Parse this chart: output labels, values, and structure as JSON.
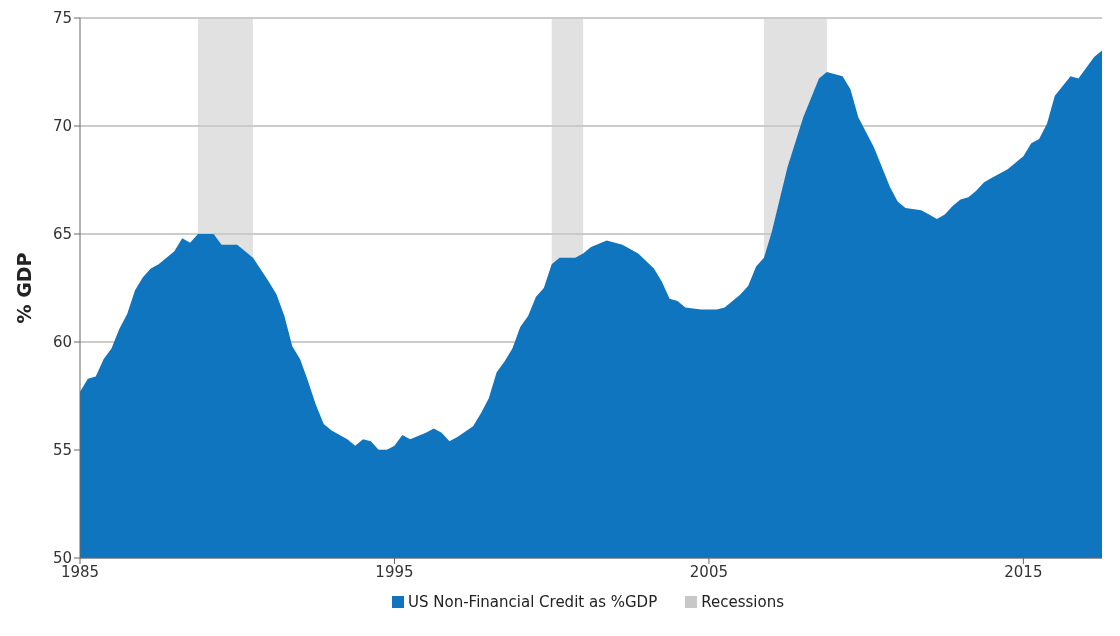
{
  "chart_data": {
    "type": "area",
    "ylabel": "% GDP",
    "xlim": [
      1985,
      2017.5
    ],
    "xticks": [
      1985,
      1995,
      2005,
      2015
    ],
    "ylim": [
      50,
      75
    ],
    "yticks": [
      50,
      55,
      60,
      65,
      70,
      75
    ],
    "grid": "y",
    "legend": "bottom",
    "series": [
      {
        "name": "US Non-Financial Credit as %GDP",
        "color": "#0f75bf",
        "x": [
          1985,
          1985.25,
          1985.5,
          1985.75,
          1986,
          1986.25,
          1986.5,
          1986.75,
          1987,
          1987.25,
          1987.5,
          1987.75,
          1988,
          1988.25,
          1988.5,
          1988.75,
          1989.25,
          1989.5,
          1990,
          1990.5,
          1991,
          1991.25,
          1991.5,
          1991.75,
          1992,
          1992.25,
          1992.5,
          1992.75,
          1993,
          1993.5,
          1993.75,
          1994,
          1994.25,
          1994.5,
          1994.75,
          1995,
          1995.25,
          1995.5,
          1996,
          1996.25,
          1996.5,
          1996.75,
          1997,
          1997.5,
          1997.75,
          1998,
          1998.25,
          1998.5,
          1998.75,
          1999,
          1999.25,
          1999.5,
          1999.75,
          2000,
          2000.25,
          2000.5,
          2000.75,
          2001,
          2001.25,
          2001.75,
          2002.25,
          2002.75,
          2003.25,
          2003.5,
          2003.75,
          2004,
          2004.25,
          2004.75,
          2005.25,
          2005.5,
          2006,
          2006.25,
          2006.5,
          2006.75,
          2007,
          2007.5,
          2008,
          2008.5,
          2008.75,
          2009.25,
          2009.5,
          2009.75,
          2010.25,
          2010.5,
          2010.75,
          2011,
          2011.25,
          2011.75,
          2012,
          2012.25,
          2012.5,
          2012.75,
          2013,
          2013.25,
          2013.5,
          2013.75,
          2014,
          2014.25,
          2014.5,
          2014.75,
          2015,
          2015.25,
          2015.5,
          2015.75,
          2016,
          2016.5,
          2016.75,
          2017,
          2017.25,
          2017.5
        ],
        "values": [
          57.7,
          58.3,
          58.4,
          59.2,
          59.7,
          60.6,
          61.3,
          62.4,
          63.0,
          63.4,
          63.6,
          63.9,
          64.2,
          64.8,
          64.6,
          65.0,
          65.0,
          64.5,
          64.5,
          63.9,
          62.8,
          62.2,
          61.2,
          59.8,
          59.2,
          58.2,
          57.1,
          56.2,
          55.9,
          55.5,
          55.2,
          55.5,
          55.4,
          55.0,
          55.0,
          55.2,
          55.7,
          55.5,
          55.8,
          56.0,
          55.8,
          55.4,
          55.6,
          56.1,
          56.7,
          57.4,
          58.6,
          59.1,
          59.7,
          60.7,
          61.2,
          62.1,
          62.5,
          63.6,
          63.9,
          63.9,
          63.9,
          64.1,
          64.4,
          64.7,
          64.5,
          64.1,
          63.4,
          62.8,
          62.0,
          61.9,
          61.6,
          61.5,
          61.5,
          61.6,
          62.2,
          62.6,
          63.5,
          63.9,
          65.1,
          68.1,
          70.4,
          72.2,
          72.5,
          72.3,
          71.7,
          70.4,
          69.0,
          68.1,
          67.2,
          66.5,
          66.2,
          66.1,
          65.9,
          65.7,
          65.9,
          66.3,
          66.6,
          66.7,
          67.0,
          67.4,
          67.6,
          67.8,
          68.0,
          68.3,
          68.6,
          69.2,
          69.4,
          70.1,
          71.4,
          72.3,
          72.2,
          72.7,
          73.2,
          73.5
        ]
      }
    ],
    "bands": [
      {
        "axis": "x",
        "from": 1988.75,
        "to": 1990.5,
        "label": "Recessions",
        "color": "#c8c8c8"
      },
      {
        "axis": "x",
        "from": 2000,
        "to": 2001,
        "color": "#c8c8c8"
      },
      {
        "axis": "x",
        "from": 2006.75,
        "to": 2008.75,
        "color": "#c8c8c8"
      }
    ]
  }
}
